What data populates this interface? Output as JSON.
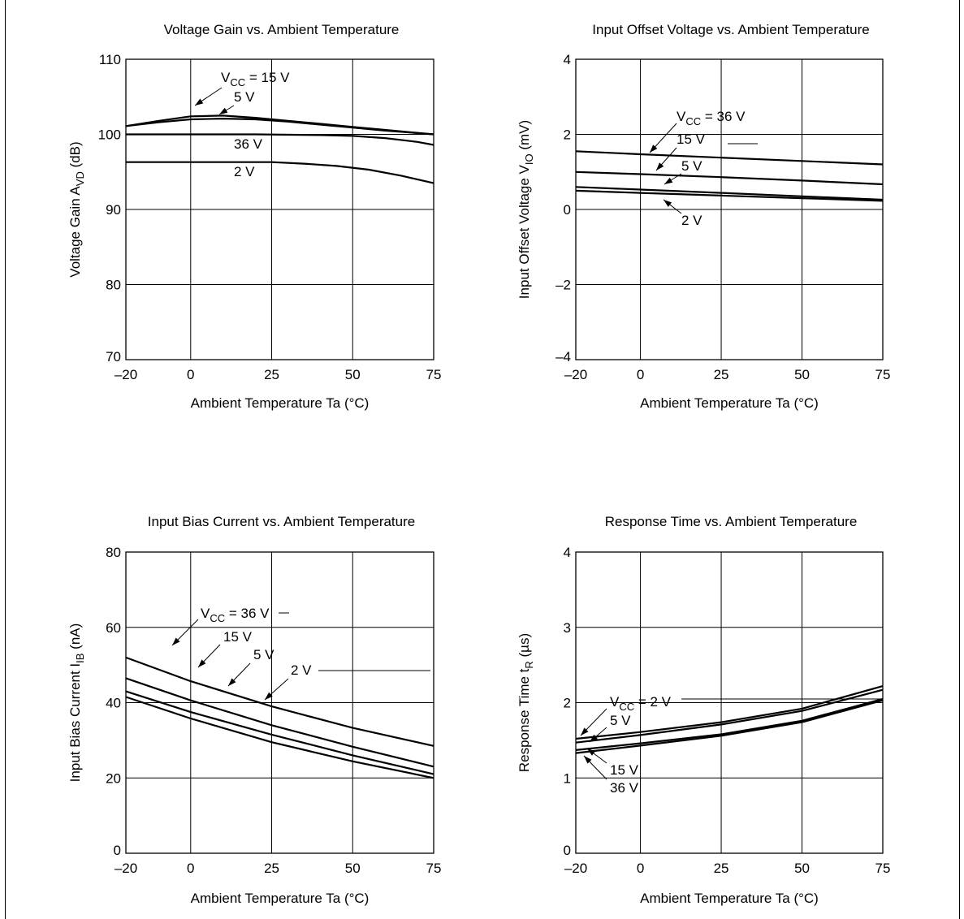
{
  "chart_data": [
    {
      "type": "line",
      "title": "Voltage Gain vs. Ambient Temperature",
      "xlabel": "Ambient Temperature  Ta  (°C)",
      "ylabel": "Voltage Gain  A",
      "ylabel_sub": "VD",
      "ylabel_unit": "  (dB)",
      "xlim": [
        -20,
        75
      ],
      "ylim": [
        70,
        110
      ],
      "xticks": [
        -20,
        0,
        25,
        50,
        75
      ],
      "xtick_labels": [
        "–20",
        "0",
        "25",
        "50",
        "75"
      ],
      "yticks": [
        70,
        80,
        90,
        100,
        110
      ],
      "ytick_labels": [
        "70",
        "80",
        "90",
        "100",
        "110"
      ],
      "grid": true,
      "series": [
        {
          "name": "VCC = 15 V",
          "x": [
            -20,
            -10,
            0,
            10,
            20,
            30,
            40,
            50,
            60,
            75
          ],
          "y": [
            101.1,
            101.8,
            102.4,
            102.5,
            102.2,
            101.8,
            101.4,
            101.0,
            100.6,
            100.0
          ]
        },
        {
          "name": "5 V",
          "x": [
            -20,
            -10,
            0,
            10,
            20,
            30,
            40,
            50,
            60,
            75
          ],
          "y": [
            101.1,
            101.6,
            102.0,
            102.1,
            102.0,
            101.7,
            101.3,
            100.9,
            100.5,
            100.0
          ]
        },
        {
          "name": "36 V",
          "x": [
            -20,
            0,
            20,
            40,
            50,
            60,
            70,
            75
          ],
          "y": [
            100.0,
            100.0,
            100.0,
            99.9,
            99.8,
            99.5,
            99.0,
            98.6
          ]
        },
        {
          "name": "2 V",
          "x": [
            -20,
            0,
            25,
            35,
            45,
            55,
            65,
            75
          ],
          "y": [
            96.3,
            96.3,
            96.3,
            96.1,
            95.8,
            95.3,
            94.5,
            93.5
          ]
        }
      ],
      "labels": [
        {
          "main": "V",
          "sub": "CC",
          "rest": " = 15 V"
        },
        {
          "main": "5 V",
          "sub": "",
          "rest": ""
        },
        {
          "main": "36 V",
          "sub": "",
          "rest": ""
        },
        {
          "main": "2 V",
          "sub": "",
          "rest": ""
        }
      ]
    },
    {
      "type": "line",
      "title": "Input Offset Voltage vs. Ambient Temperature",
      "xlabel": "Ambient Temperature  Ta  (°C)",
      "ylabel": "Input Offset Voltage  V",
      "ylabel_sub": "IO",
      "ylabel_unit": "  (mV)",
      "xlim": [
        -20,
        75
      ],
      "ylim": [
        -4,
        4
      ],
      "xticks": [
        -20,
        0,
        25,
        50,
        75
      ],
      "xtick_labels": [
        "–20",
        "0",
        "25",
        "50",
        "75"
      ],
      "yticks": [
        -4,
        -2,
        0,
        2,
        4
      ],
      "ytick_labels": [
        "–4",
        "–2",
        "0",
        "2",
        "4"
      ],
      "grid": true,
      "series": [
        {
          "name": "VCC = 36 V",
          "x": [
            -20,
            0,
            25,
            50,
            75
          ],
          "y": [
            1.55,
            1.47,
            1.38,
            1.29,
            1.2
          ]
        },
        {
          "name": "15 V",
          "x": [
            -20,
            0,
            25,
            50,
            75
          ],
          "y": [
            1.0,
            0.94,
            0.86,
            0.77,
            0.67
          ]
        },
        {
          "name": "5 V",
          "x": [
            -20,
            0,
            25,
            50,
            75
          ],
          "y": [
            0.6,
            0.53,
            0.44,
            0.35,
            0.26
          ]
        },
        {
          "name": "2 V",
          "x": [
            -20,
            0,
            25,
            50,
            75
          ],
          "y": [
            0.5,
            0.44,
            0.37,
            0.3,
            0.23
          ]
        }
      ],
      "labels": [
        {
          "main": "V",
          "sub": "CC",
          "rest": " = 36 V"
        },
        {
          "main": "15 V",
          "sub": "",
          "rest": ""
        },
        {
          "main": "5 V",
          "sub": "",
          "rest": ""
        },
        {
          "main": "2 V",
          "sub": "",
          "rest": ""
        }
      ]
    },
    {
      "type": "line",
      "title": "Input Bias Current vs. Ambient Temperature",
      "xlabel": "Ambient Temperature  Ta  (°C)",
      "ylabel": "Input Bias Current  I",
      "ylabel_sub": "IB",
      "ylabel_unit": "  (nA)",
      "xlim": [
        -20,
        75
      ],
      "ylim": [
        0,
        80
      ],
      "xticks": [
        -20,
        0,
        25,
        50,
        75
      ],
      "xtick_labels": [
        "–20",
        "0",
        "25",
        "50",
        "75"
      ],
      "yticks": [
        0,
        20,
        40,
        60,
        80
      ],
      "ytick_labels": [
        "0",
        "20",
        "40",
        "60",
        "80"
      ],
      "grid": true,
      "series": [
        {
          "name": "VCC = 36 V",
          "x": [
            -20,
            0,
            25,
            50,
            75
          ],
          "y": [
            52.0,
            45.7,
            39.0,
            33.3,
            28.5
          ]
        },
        {
          "name": "15 V",
          "x": [
            -20,
            0,
            25,
            50,
            75
          ],
          "y": [
            46.5,
            40.6,
            34.0,
            28.3,
            23.0
          ]
        },
        {
          "name": "5 V",
          "x": [
            -20,
            0,
            25,
            50,
            75
          ],
          "y": [
            43.0,
            37.5,
            31.5,
            26.0,
            21.0
          ]
        },
        {
          "name": "2 V",
          "x": [
            -20,
            0,
            25,
            50,
            75
          ],
          "y": [
            41.5,
            35.8,
            29.5,
            24.4,
            20.0
          ]
        }
      ],
      "labels": [
        {
          "main": "V",
          "sub": "CC",
          "rest": " = 36 V"
        },
        {
          "main": "15 V",
          "sub": "",
          "rest": ""
        },
        {
          "main": "5 V",
          "sub": "",
          "rest": ""
        },
        {
          "main": "2 V",
          "sub": "",
          "rest": ""
        }
      ]
    },
    {
      "type": "line",
      "title": "Response Time vs. Ambient Temperature",
      "xlabel": "Ambient Temperature  Ta  (°C)",
      "ylabel": "Response Time  t",
      "ylabel_sub": "R",
      "ylabel_unit": "  (µs)",
      "xlim": [
        -20,
        75
      ],
      "ylim": [
        0,
        4
      ],
      "xticks": [
        -20,
        0,
        25,
        50,
        75
      ],
      "xtick_labels": [
        "–20",
        "0",
        "25",
        "50",
        "75"
      ],
      "yticks": [
        0,
        1,
        2,
        3,
        4
      ],
      "ytick_labels": [
        "0",
        "1",
        "2",
        "3",
        "4"
      ],
      "grid": true,
      "series": [
        {
          "name": "VCC = 2 V",
          "x": [
            -20,
            0,
            25,
            50,
            75
          ],
          "y": [
            1.52,
            1.61,
            1.74,
            1.92,
            2.22
          ]
        },
        {
          "name": "5 V",
          "x": [
            -20,
            0,
            25,
            50,
            75
          ],
          "y": [
            1.47,
            1.57,
            1.71,
            1.89,
            2.17
          ]
        },
        {
          "name": "15 V",
          "x": [
            -20,
            0,
            25,
            50,
            75
          ],
          "y": [
            1.37,
            1.46,
            1.58,
            1.76,
            2.05
          ]
        },
        {
          "name": "36 V",
          "x": [
            -20,
            0,
            25,
            50,
            75
          ],
          "y": [
            1.33,
            1.43,
            1.56,
            1.74,
            2.03
          ]
        }
      ],
      "labels": [
        {
          "main": "V",
          "sub": "CC",
          "rest": " = 2 V"
        },
        {
          "main": "5 V",
          "sub": "",
          "rest": ""
        },
        {
          "main": "15 V",
          "sub": "",
          "rest": ""
        },
        {
          "main": "36 V",
          "sub": "",
          "rest": ""
        }
      ]
    }
  ]
}
